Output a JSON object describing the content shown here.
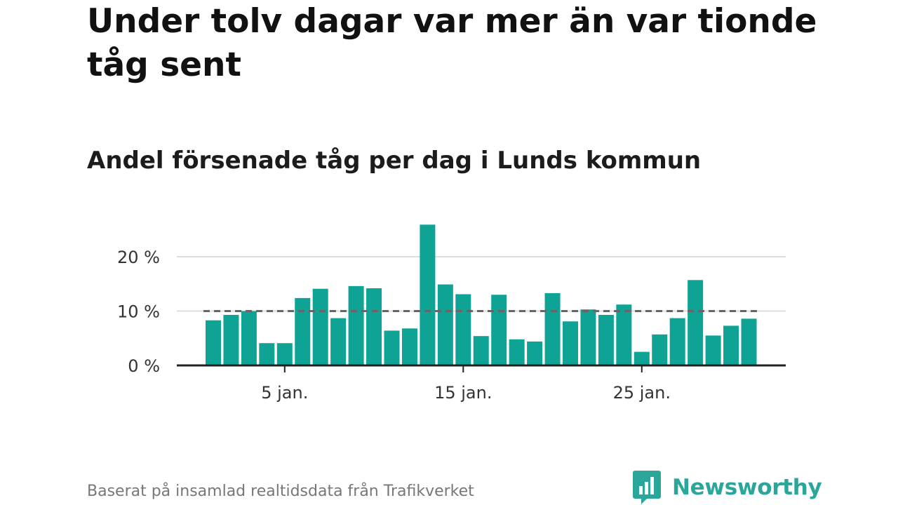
{
  "title": "Under tolv dagar var mer än var tionde tåg sent",
  "subtitle": "Andel försenade tåg per dag i Lunds kommun",
  "footer": "Baserat på insamlad realtidsdata från Trafikverket",
  "logo": {
    "text": "Newsworthy",
    "icon": "newsworthy-logo-icon"
  },
  "colors": {
    "bar": "#0fa396",
    "grid": "#dddddd",
    "axis": "#222222",
    "reference_line": "#666666",
    "brand": "#2aa69a"
  },
  "chart_data": {
    "type": "bar",
    "x": [
      1,
      2,
      3,
      4,
      5,
      6,
      7,
      8,
      9,
      10,
      11,
      12,
      13,
      14,
      15,
      16,
      17,
      18,
      19,
      20,
      21,
      22,
      23,
      24,
      25,
      26,
      27,
      28,
      29,
      30,
      31
    ],
    "values": [
      8.3,
      9.3,
      10.0,
      4.1,
      4.1,
      12.4,
      14.1,
      8.7,
      14.6,
      14.2,
      6.4,
      6.8,
      25.9,
      14.9,
      13.1,
      5.4,
      13.0,
      4.8,
      4.4,
      13.3,
      8.1,
      10.3,
      9.3,
      11.2,
      2.5,
      5.7,
      8.7,
      15.7,
      5.5,
      7.3,
      8.6
    ],
    "unit": "%",
    "yticks": [
      0,
      10,
      20
    ],
    "ytick_labels": [
      "0 %",
      "10 %",
      "20 %"
    ],
    "xticks": [
      5,
      15,
      25
    ],
    "xtick_labels": [
      "5 jan.",
      "15 jan.",
      "25 jan."
    ],
    "ylim": [
      0,
      27
    ],
    "reference_line": {
      "y": 10,
      "style": "dashed"
    },
    "grid": true,
    "xlabel": "",
    "ylabel": ""
  }
}
